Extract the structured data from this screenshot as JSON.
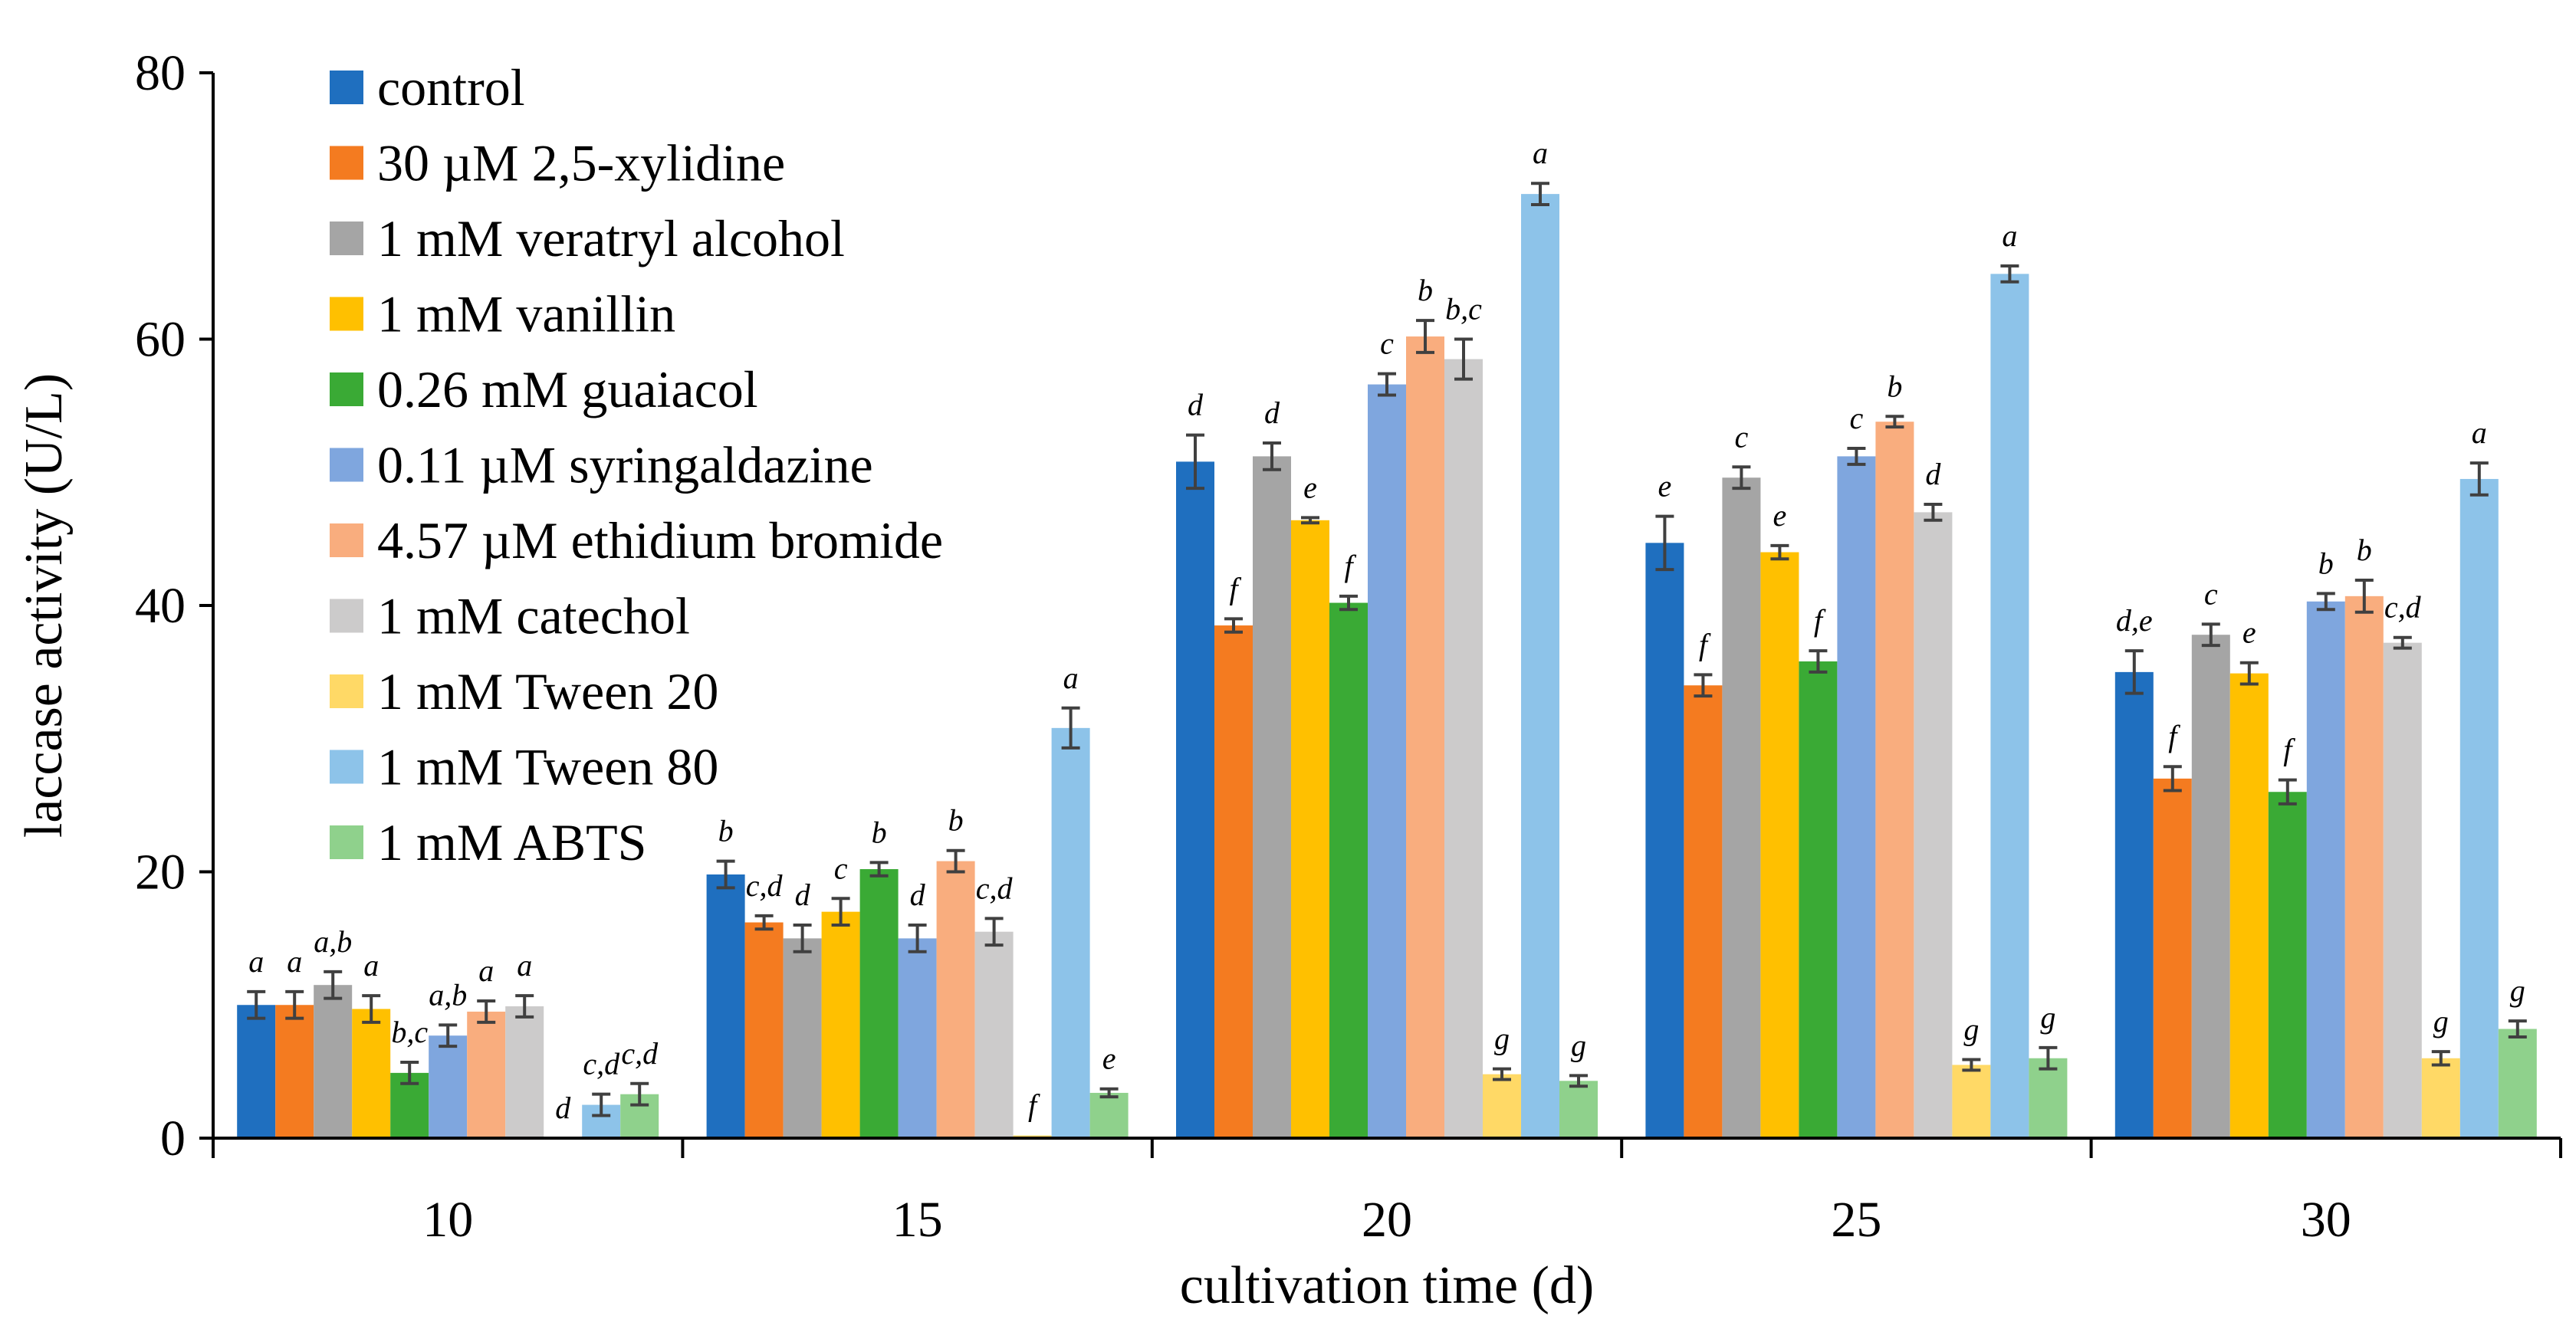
{
  "chart_data": {
    "type": "bar",
    "title": "",
    "xlabel": "cultivation time (d)",
    "ylabel": "laccase activity (U/L)",
    "ylim": [
      0,
      80
    ],
    "yticks": [
      0,
      20,
      40,
      60,
      80
    ],
    "grid": false,
    "legend_position": "top-left",
    "categories": [
      "10",
      "15",
      "20",
      "25",
      "30"
    ],
    "series": [
      {
        "name": "control",
        "color": "#1f6fbf",
        "values": [
          10.0,
          19.8,
          50.8,
          44.7,
          35.0
        ],
        "errors": [
          1.0,
          1.0,
          2.0,
          2.0,
          1.6
        ],
        "labels": [
          "a",
          "b",
          "d",
          "e",
          "d,e"
        ]
      },
      {
        "name": "30 µM 2,5-xylidine",
        "color": "#f47b20",
        "values": [
          10.0,
          16.2,
          38.5,
          34.0,
          27.0
        ],
        "errors": [
          1.0,
          0.5,
          0.5,
          0.8,
          0.9
        ],
        "labels": [
          "a",
          "c,d",
          "f",
          "f",
          "f"
        ]
      },
      {
        "name": "1 mM veratryl alcohol",
        "color": "#a5a5a5",
        "values": [
          11.5,
          15.0,
          51.2,
          49.6,
          37.8
        ],
        "errors": [
          1.0,
          1.0,
          1.0,
          0.8,
          0.8
        ],
        "labels": [
          "a,b",
          "d",
          "d",
          "c",
          "c"
        ]
      },
      {
        "name": "1 mM vanillin",
        "color": "#ffc000",
        "values": [
          9.7,
          17.0,
          46.4,
          44.0,
          34.9
        ],
        "errors": [
          1.0,
          1.0,
          0.2,
          0.5,
          0.8
        ],
        "labels": [
          "a",
          "c",
          "e",
          "e",
          "e"
        ]
      },
      {
        "name": "0.26 mM guaiacol",
        "color": "#3aaa35",
        "values": [
          4.9,
          20.2,
          40.2,
          35.8,
          26.0
        ],
        "errors": [
          0.8,
          0.5,
          0.5,
          0.8,
          0.9
        ],
        "labels": [
          "b,c",
          "b",
          "f",
          "f",
          "f"
        ]
      },
      {
        "name": "0.11 µM syringaldazine",
        "color": "#7fa6de",
        "values": [
          7.7,
          15.0,
          56.6,
          51.2,
          40.3
        ],
        "errors": [
          0.8,
          1.0,
          0.8,
          0.6,
          0.6
        ],
        "labels": [
          "a,b",
          "d",
          "c",
          "c",
          "b"
        ]
      },
      {
        "name": "4.57 µM ethidium bromide",
        "color": "#f9ad7e",
        "values": [
          9.5,
          20.8,
          60.2,
          53.8,
          40.7
        ],
        "errors": [
          0.8,
          0.8,
          1.2,
          0.4,
          1.2
        ],
        "labels": [
          "a",
          "b",
          "b",
          "b",
          "b"
        ]
      },
      {
        "name": "1 mM catechol",
        "color": "#cccbcb",
        "values": [
          9.9,
          15.5,
          58.5,
          47.0,
          37.2
        ],
        "errors": [
          0.8,
          1.0,
          1.5,
          0.6,
          0.4
        ],
        "labels": [
          "a",
          "c,d",
          "b,c",
          "d",
          "c,d"
        ]
      },
      {
        "name": "1 mM Tween 20",
        "color": "#ffd966",
        "values": [
          0.0,
          0.2,
          4.8,
          5.5,
          6.0
        ],
        "errors": [
          0.0,
          0.0,
          0.4,
          0.4,
          0.5
        ],
        "labels": [
          "d",
          "f",
          "g",
          "g",
          "g"
        ]
      },
      {
        "name": "1 mM Tween 80",
        "color": "#8dc3e9",
        "values": [
          2.5,
          30.8,
          70.9,
          64.9,
          49.5
        ],
        "errors": [
          0.8,
          1.5,
          0.8,
          0.6,
          1.2
        ],
        "labels": [
          "c,d",
          "a",
          "a",
          "a",
          "a"
        ]
      },
      {
        "name": "1 mM ABTS",
        "color": "#8fd18c",
        "values": [
          3.3,
          3.4,
          4.3,
          6.0,
          8.2
        ],
        "errors": [
          0.8,
          0.3,
          0.4,
          0.8,
          0.6
        ],
        "labels": [
          "c,d",
          "e",
          "g",
          "g",
          "g"
        ]
      }
    ]
  }
}
